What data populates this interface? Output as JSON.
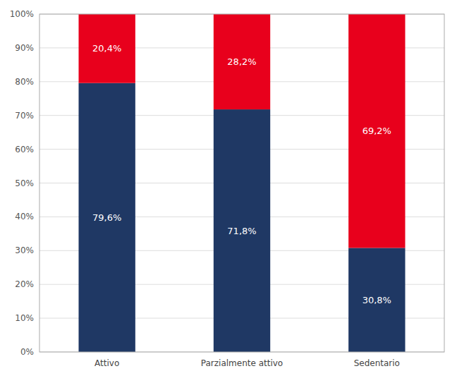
{
  "chart_data": {
    "type": "bar",
    "stacked": true,
    "data_labels": true,
    "grid": true,
    "categories": [
      "Attivo",
      "Parzialmente attivo",
      "Sedentario"
    ],
    "series": [
      {
        "color": "#1F3864",
        "values": [
          79.6,
          71.8,
          30.8
        ],
        "value_labels": [
          "79,6%",
          "71,8%",
          "30,8%"
        ]
      },
      {
        "color": "#E8001C",
        "values": [
          20.4,
          28.2,
          69.2
        ],
        "value_labels": [
          "20,4%",
          "28,2%",
          "69,2%"
        ]
      }
    ],
    "ylim": [
      0,
      100
    ],
    "yticks": [
      {
        "value": 0,
        "label": "0%"
      },
      {
        "value": 10,
        "label": "10%"
      },
      {
        "value": 20,
        "label": "20%"
      },
      {
        "value": 30,
        "label": "30%"
      },
      {
        "value": 40,
        "label": "40%"
      },
      {
        "value": 50,
        "label": "50%"
      },
      {
        "value": 60,
        "label": "60%"
      },
      {
        "value": 70,
        "label": "70%"
      },
      {
        "value": 80,
        "label": "80%"
      },
      {
        "value": 90,
        "label": "90%"
      },
      {
        "value": 100,
        "label": "100%"
      }
    ]
  }
}
